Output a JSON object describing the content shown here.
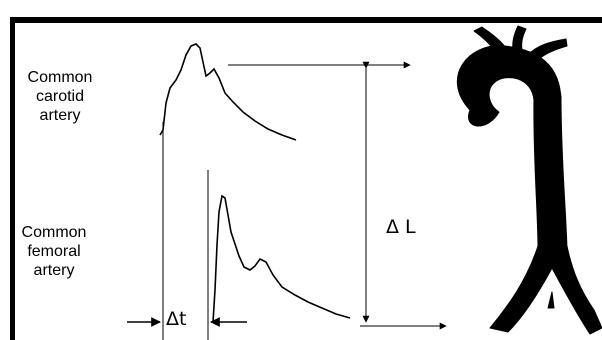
{
  "labels": {
    "carotid": [
      "Common",
      "carotid",
      "artery"
    ],
    "femoral": [
      "Common",
      "femoral",
      "artery"
    ],
    "delta_t": "Δt",
    "delta_l": "Δ L"
  },
  "colors": {
    "ink": "#000000",
    "background": "#ffffff"
  },
  "icons": {
    "aorta": "aorta-silhouette-icon"
  }
}
